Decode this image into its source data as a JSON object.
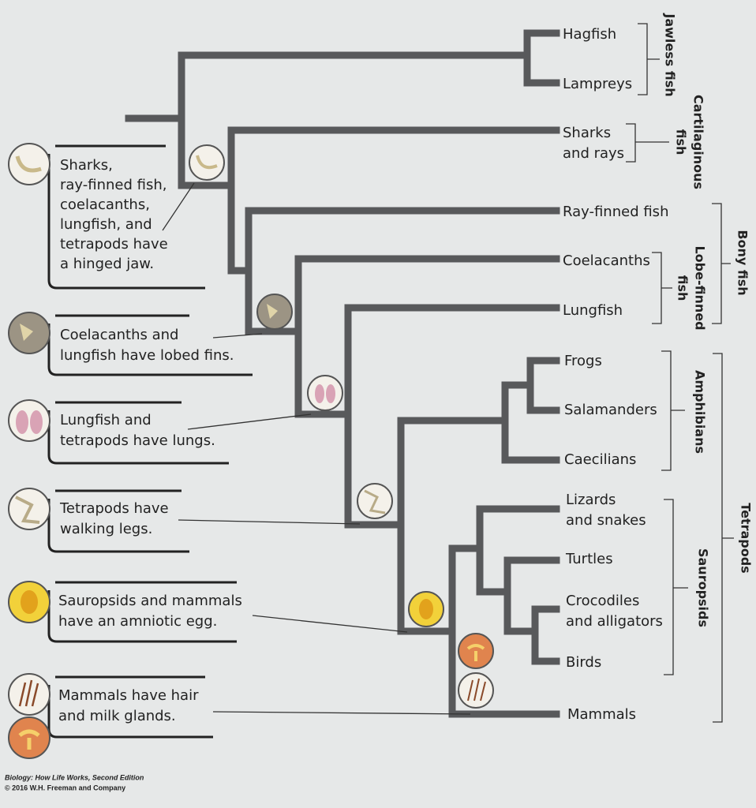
{
  "taxa": [
    [
      "Hagfish"
    ],
    [
      "Lampreys"
    ],
    [
      "Sharks",
      "and rays"
    ],
    [
      "Ray-finned fish"
    ],
    [
      "Coelacanths"
    ],
    [
      "Lungfish"
    ],
    [
      "Frogs"
    ],
    [
      "Salamanders"
    ],
    [
      "Caecilians"
    ],
    [
      "Lizards",
      "and snakes"
    ],
    [
      "Turtles"
    ],
    [
      "Crocodiles",
      "and alligators"
    ],
    [
      "Birds"
    ],
    [
      "Mammals"
    ]
  ],
  "groups": [
    [
      "Jawless fish"
    ],
    [
      "Cartilaginous",
      "fish"
    ],
    [
      "Bony fish"
    ],
    [
      "Lobe-finned",
      "fish"
    ],
    [
      "Amphibians"
    ],
    [
      "Sauropsids"
    ],
    [
      "Tetrapods"
    ]
  ],
  "callouts": [
    [
      "Sharks,",
      "ray-finned fish,",
      "coelacanths,",
      "lungfish, and",
      "tetrapods have",
      "a hinged jaw."
    ],
    [
      "Coelacanths and",
      "lungfish have lobed fins."
    ],
    [
      "Lungfish and",
      "tetrapods have lungs."
    ],
    [
      "Tetrapods have",
      "walking legs."
    ],
    [
      "Sauropsids and mammals",
      "have an amniotic egg."
    ],
    [
      "Mammals have hair",
      "and milk glands."
    ]
  ],
  "credit": [
    "Biology: How Life Works, Second Edition",
    "© 2016 W.H. Freeman and Company"
  ]
}
